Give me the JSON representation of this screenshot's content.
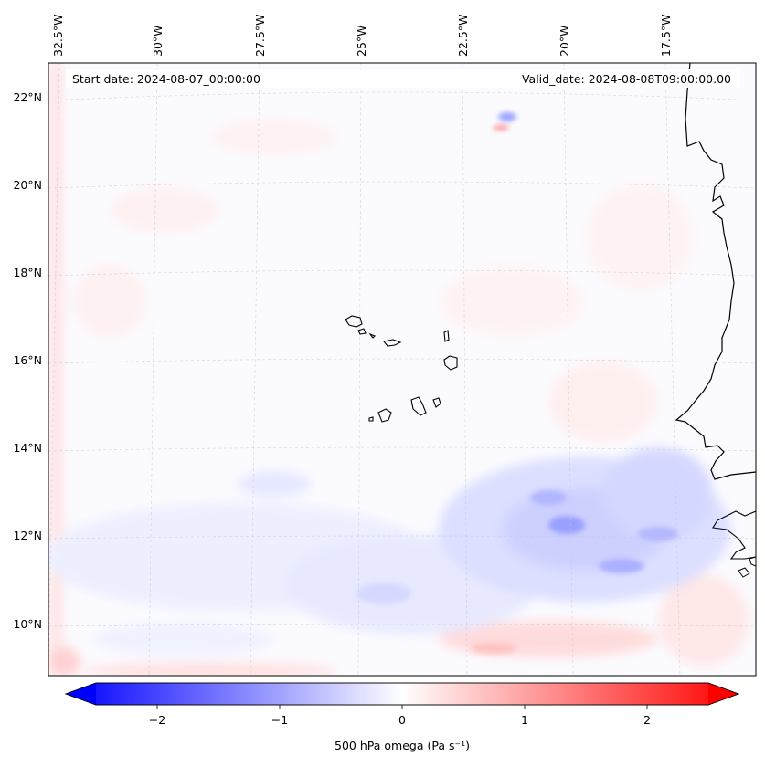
{
  "header": {
    "start_date": "Start date: 2024-08-07_00:00:00",
    "valid_date": "Valid_date: 2024-08-08T09:00:00.00"
  },
  "map": {
    "longitude_labels": [
      "32.5°W",
      "30°W",
      "27.5°W",
      "25°W",
      "22.5°W",
      "20°W",
      "17.5°W"
    ],
    "latitude_labels": [
      "22°N",
      "20°N",
      "18°N",
      "16°N",
      "14°N",
      "12°N",
      "10°N"
    ]
  },
  "colorbar": {
    "label": "500 hPa omega (Pa s⁻¹)",
    "ticks": [
      "−2",
      "−1",
      "0",
      "1",
      "2"
    ],
    "tick_values": [
      -2,
      -1,
      0,
      1,
      2
    ],
    "range": [
      -2.75,
      2.75
    ],
    "colors": {
      "negative": "#0000ff",
      "zero": "#ffffff",
      "positive": "#ff0000"
    }
  }
}
